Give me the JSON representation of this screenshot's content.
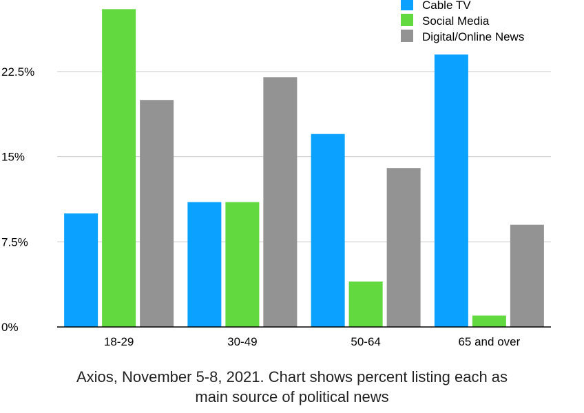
{
  "chart_data": {
    "type": "bar",
    "title": "",
    "xlabel": "",
    "ylabel": "",
    "categories": [
      "18-29",
      "30-49",
      "50-64",
      "65 and over"
    ],
    "series": [
      {
        "name": "Cable TV",
        "color": "#0ba2ff",
        "values": [
          10,
          11,
          17,
          24
        ]
      },
      {
        "name": "Social Media",
        "color": "#62d93e",
        "values": [
          28,
          11,
          4,
          1
        ]
      },
      {
        "name": "Digital/Online News",
        "color": "#939393",
        "values": [
          20,
          22,
          14,
          9
        ]
      }
    ],
    "yticks": [
      0,
      7.5,
      15,
      22.5
    ],
    "ytick_labels": [
      "0%",
      "7.5%",
      "15%",
      "22.5%"
    ],
    "ylim": [
      0,
      28
    ],
    "grid": true,
    "legend_position": "top-right"
  },
  "caption": {
    "line1": "Axios, November 5-8, 2021. Chart shows percent listing each as",
    "line2": "main source of political news"
  }
}
